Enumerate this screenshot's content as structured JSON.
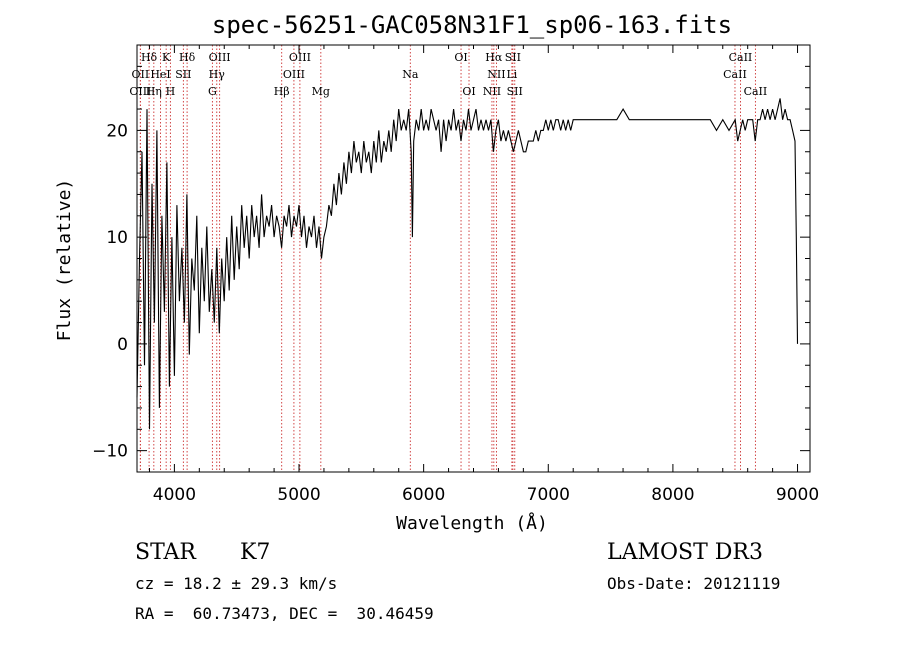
{
  "chart_data": {
    "type": "line",
    "title": "spec-56251-GAC058N31F1_sp06-163.fits",
    "xlabel": "Wavelength (Å)",
    "ylabel": "Flux (relative)",
    "xlim": [
      3700,
      9100
    ],
    "ylim": [
      -12,
      28
    ],
    "xticks": [
      4000,
      5000,
      6000,
      7000,
      8000,
      9000
    ],
    "yticks": [
      -10,
      0,
      10,
      20
    ],
    "x_tick_labels": [
      "4000",
      "5000",
      "6000",
      "7000",
      "8000",
      "9000"
    ],
    "y_tick_labels": [
      "−10",
      "0",
      "10",
      "20"
    ],
    "line_color": "#000000",
    "marker_color": "#cc3333",
    "spectrum": [
      [
        3700,
        -5
      ],
      [
        3720,
        8
      ],
      [
        3740,
        18
      ],
      [
        3760,
        -2
      ],
      [
        3780,
        22
      ],
      [
        3800,
        -8
      ],
      [
        3820,
        15
      ],
      [
        3840,
        2
      ],
      [
        3860,
        20
      ],
      [
        3880,
        -6
      ],
      [
        3900,
        12
      ],
      [
        3920,
        3
      ],
      [
        3940,
        17
      ],
      [
        3960,
        -4
      ],
      [
        3980,
        10
      ],
      [
        4000,
        -3
      ],
      [
        4020,
        13
      ],
      [
        4040,
        4
      ],
      [
        4060,
        9
      ],
      [
        4080,
        2
      ],
      [
        4100,
        14
      ],
      [
        4120,
        -1
      ],
      [
        4140,
        8
      ],
      [
        4160,
        5
      ],
      [
        4180,
        12
      ],
      [
        4200,
        1
      ],
      [
        4220,
        9
      ],
      [
        4240,
        4
      ],
      [
        4260,
        11
      ],
      [
        4280,
        3
      ],
      [
        4300,
        7
      ],
      [
        4320,
        2
      ],
      [
        4340,
        9
      ],
      [
        4360,
        1
      ],
      [
        4380,
        8
      ],
      [
        4400,
        4
      ],
      [
        4420,
        10
      ],
      [
        4440,
        5
      ],
      [
        4460,
        12
      ],
      [
        4480,
        6
      ],
      [
        4500,
        11
      ],
      [
        4520,
        7
      ],
      [
        4540,
        13
      ],
      [
        4560,
        9
      ],
      [
        4580,
        12
      ],
      [
        4600,
        8
      ],
      [
        4620,
        13
      ],
      [
        4640,
        10
      ],
      [
        4660,
        12
      ],
      [
        4680,
        9
      ],
      [
        4700,
        14
      ],
      [
        4720,
        10
      ],
      [
        4740,
        12
      ],
      [
        4760,
        11
      ],
      [
        4780,
        13
      ],
      [
        4800,
        10
      ],
      [
        4820,
        12
      ],
      [
        4840,
        11
      ],
      [
        4860,
        9
      ],
      [
        4880,
        12
      ],
      [
        4900,
        11
      ],
      [
        4920,
        13
      ],
      [
        4940,
        10
      ],
      [
        4960,
        12
      ],
      [
        4980,
        11
      ],
      [
        5000,
        13
      ],
      [
        5020,
        10
      ],
      [
        5040,
        12
      ],
      [
        5060,
        9
      ],
      [
        5080,
        11
      ],
      [
        5100,
        10
      ],
      [
        5120,
        12
      ],
      [
        5140,
        9
      ],
      [
        5160,
        11
      ],
      [
        5180,
        8
      ],
      [
        5200,
        10
      ],
      [
        5220,
        11
      ],
      [
        5240,
        13
      ],
      [
        5260,
        12
      ],
      [
        5280,
        15
      ],
      [
        5300,
        13
      ],
      [
        5320,
        16
      ],
      [
        5340,
        14
      ],
      [
        5360,
        17
      ],
      [
        5380,
        15
      ],
      [
        5400,
        18
      ],
      [
        5420,
        16
      ],
      [
        5440,
        19
      ],
      [
        5460,
        17
      ],
      [
        5480,
        18
      ],
      [
        5500,
        16
      ],
      [
        5520,
        19
      ],
      [
        5540,
        17
      ],
      [
        5560,
        18
      ],
      [
        5580,
        16
      ],
      [
        5600,
        19
      ],
      [
        5620,
        17
      ],
      [
        5640,
        20
      ],
      [
        5660,
        17
      ],
      [
        5680,
        19
      ],
      [
        5700,
        18
      ],
      [
        5720,
        20
      ],
      [
        5740,
        18
      ],
      [
        5760,
        21
      ],
      [
        5780,
        19
      ],
      [
        5800,
        22
      ],
      [
        5820,
        20
      ],
      [
        5840,
        21
      ],
      [
        5860,
        20
      ],
      [
        5880,
        22
      ],
      [
        5900,
        18
      ],
      [
        5910,
        10
      ],
      [
        5920,
        19
      ],
      [
        5940,
        21
      ],
      [
        5960,
        20
      ],
      [
        5980,
        22
      ],
      [
        6000,
        20
      ],
      [
        6020,
        21
      ],
      [
        6040,
        20
      ],
      [
        6060,
        22
      ],
      [
        6080,
        21
      ],
      [
        6100,
        20
      ],
      [
        6120,
        21
      ],
      [
        6140,
        18
      ],
      [
        6160,
        21
      ],
      [
        6180,
        19
      ],
      [
        6200,
        21
      ],
      [
        6220,
        20
      ],
      [
        6240,
        22
      ],
      [
        6260,
        20
      ],
      [
        6280,
        21
      ],
      [
        6300,
        19
      ],
      [
        6320,
        21
      ],
      [
        6340,
        20
      ],
      [
        6360,
        22
      ],
      [
        6380,
        20
      ],
      [
        6400,
        21
      ],
      [
        6420,
        22
      ],
      [
        6440,
        20
      ],
      [
        6460,
        21
      ],
      [
        6480,
        20
      ],
      [
        6500,
        21
      ],
      [
        6520,
        20
      ],
      [
        6540,
        21
      ],
      [
        6560,
        18
      ],
      [
        6580,
        20
      ],
      [
        6600,
        21
      ],
      [
        6620,
        19
      ],
      [
        6640,
        20
      ],
      [
        6660,
        19
      ],
      [
        6680,
        20
      ],
      [
        6700,
        19
      ],
      [
        6720,
        18
      ],
      [
        6740,
        19
      ],
      [
        6760,
        20
      ],
      [
        6780,
        19
      ],
      [
        6800,
        18
      ],
      [
        6820,
        18
      ],
      [
        6840,
        19
      ],
      [
        6860,
        19
      ],
      [
        6880,
        19
      ],
      [
        6900,
        20
      ],
      [
        6920,
        19
      ],
      [
        6940,
        20
      ],
      [
        6960,
        20
      ],
      [
        6980,
        21
      ],
      [
        7000,
        20
      ],
      [
        7020,
        21
      ],
      [
        7040,
        20
      ],
      [
        7060,
        21
      ],
      [
        7080,
        21
      ],
      [
        7100,
        20
      ],
      [
        7120,
        21
      ],
      [
        7140,
        20
      ],
      [
        7160,
        21
      ],
      [
        7180,
        20
      ],
      [
        7200,
        21
      ],
      [
        7250,
        21
      ],
      [
        7300,
        21
      ],
      [
        7350,
        21
      ],
      [
        7400,
        21
      ],
      [
        7450,
        21
      ],
      [
        7500,
        21
      ],
      [
        7550,
        21
      ],
      [
        7600,
        22
      ],
      [
        7650,
        21
      ],
      [
        7700,
        21
      ],
      [
        7750,
        21
      ],
      [
        7800,
        21
      ],
      [
        7850,
        21
      ],
      [
        7900,
        21
      ],
      [
        7950,
        21
      ],
      [
        8000,
        21
      ],
      [
        8050,
        21
      ],
      [
        8100,
        21
      ],
      [
        8150,
        21
      ],
      [
        8200,
        21
      ],
      [
        8250,
        21
      ],
      [
        8300,
        21
      ],
      [
        8350,
        20
      ],
      [
        8400,
        21
      ],
      [
        8450,
        20
      ],
      [
        8500,
        21
      ],
      [
        8520,
        19
      ],
      [
        8540,
        20
      ],
      [
        8560,
        21
      ],
      [
        8580,
        20
      ],
      [
        8600,
        21
      ],
      [
        8620,
        21
      ],
      [
        8640,
        21
      ],
      [
        8660,
        19
      ],
      [
        8680,
        21
      ],
      [
        8700,
        21
      ],
      [
        8720,
        22
      ],
      [
        8740,
        21
      ],
      [
        8760,
        22
      ],
      [
        8780,
        21
      ],
      [
        8800,
        22
      ],
      [
        8820,
        21
      ],
      [
        8840,
        22
      ],
      [
        8860,
        23
      ],
      [
        8880,
        21
      ],
      [
        8900,
        22
      ],
      [
        8920,
        21
      ],
      [
        8940,
        21
      ],
      [
        8960,
        20
      ],
      [
        8980,
        19
      ],
      [
        8990,
        10
      ],
      [
        9000,
        0
      ]
    ],
    "lines": [
      {
        "label": "Hδ",
        "x": 3797,
        "row": 1
      },
      {
        "label": "K",
        "x": 3934,
        "row": 1
      },
      {
        "label": "Hδ",
        "x": 4102,
        "row": 1
      },
      {
        "label": "OIII",
        "x": 4363,
        "row": 1
      },
      {
        "label": "OIII",
        "x": 5007,
        "row": 1
      },
      {
        "label": "OI",
        "x": 6300,
        "row": 1
      },
      {
        "label": "Hα",
        "x": 6563,
        "row": 1
      },
      {
        "label": "SII",
        "x": 6716,
        "row": 1
      },
      {
        "label": "CaII",
        "x": 8542,
        "row": 1
      },
      {
        "label": "OII",
        "x": 3727,
        "row": 2
      },
      {
        "label": "HeI",
        "x": 3889,
        "row": 2
      },
      {
        "label": "SII",
        "x": 4072,
        "row": 2
      },
      {
        "label": "Hγ",
        "x": 4340,
        "row": 2
      },
      {
        "label": "OIII",
        "x": 4959,
        "row": 2
      },
      {
        "label": "Na",
        "x": 5893,
        "row": 2
      },
      {
        "label": "NII",
        "x": 6584,
        "row": 2
      },
      {
        "label": "Li",
        "x": 6708,
        "row": 2
      },
      {
        "label": "CaII",
        "x": 8498,
        "row": 2
      },
      {
        "label": "OIII",
        "x": 3727,
        "row": 3
      },
      {
        "label": "Hη",
        "x": 3835,
        "row": 3
      },
      {
        "label": "H",
        "x": 3968,
        "row": 3
      },
      {
        "label": "G",
        "x": 4305,
        "row": 3
      },
      {
        "label": "Hβ",
        "x": 4861,
        "row": 3
      },
      {
        "label": "Mg",
        "x": 5175,
        "row": 3
      },
      {
        "label": "OI",
        "x": 6364,
        "row": 3
      },
      {
        "label": "NII",
        "x": 6548,
        "row": 3
      },
      {
        "label": "SII",
        "x": 6731,
        "row": 3
      },
      {
        "label": "CaII",
        "x": 8662,
        "row": 3
      }
    ]
  },
  "info": {
    "object_class": "STAR",
    "subclass": "K7",
    "survey": "LAMOST DR3",
    "cz": "cz = 18.2 ± 29.3 km/s",
    "obs_date": "Obs-Date: 20121119",
    "coords": "RA =  60.73473, DEC =  30.46459"
  }
}
